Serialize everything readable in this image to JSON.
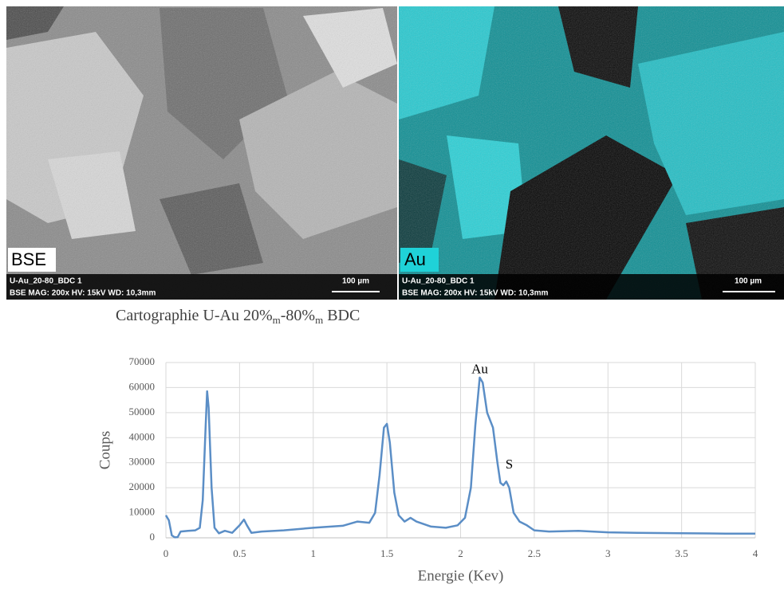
{
  "images": [
    {
      "label": "BSE",
      "sample": "U-Au_20-80_BDC 1",
      "settings": "BSE  MAG: 200x  HV: 15kV  WD: 10,3mm",
      "scale": "100 µm"
    },
    {
      "label": "Au",
      "sample": "U-Au_20-80_BDC 1",
      "settings": "BSE  MAG: 200x  HV: 15kV  WD: 10,3mm",
      "scale": "100 µm"
    }
  ],
  "caption": {
    "parts": [
      "Cartographie  U-Au 20%",
      "m",
      "-80%",
      "m",
      " BDC"
    ]
  },
  "chart_data": {
    "type": "line",
    "x_label": "Energie (Kev)",
    "y_label": "Coups",
    "x": [
      0,
      0.02,
      0.04,
      0.06,
      0.08,
      0.1,
      0.15,
      0.2,
      0.23,
      0.25,
      0.27,
      0.28,
      0.29,
      0.31,
      0.33,
      0.36,
      0.4,
      0.45,
      0.5,
      0.53,
      0.55,
      0.58,
      0.65,
      0.8,
      1.0,
      1.2,
      1.3,
      1.38,
      1.42,
      1.45,
      1.48,
      1.5,
      1.52,
      1.55,
      1.58,
      1.62,
      1.66,
      1.7,
      1.8,
      1.9,
      1.98,
      2.03,
      2.07,
      2.1,
      2.13,
      2.15,
      2.18,
      2.22,
      2.25,
      2.27,
      2.29,
      2.31,
      2.33,
      2.36,
      2.4,
      2.45,
      2.5,
      2.6,
      2.8,
      3.0,
      3.2,
      3.5,
      3.8,
      4.0
    ],
    "values": [
      9000,
      7000,
      1000,
      200,
      300,
      2500,
      2800,
      3000,
      4000,
      15000,
      45000,
      58500,
      52000,
      20000,
      4000,
      1800,
      2800,
      2000,
      5000,
      7300,
      5000,
      2000,
      2500,
      3000,
      4000,
      4800,
      6500,
      6000,
      10000,
      25000,
      44000,
      45500,
      38000,
      18000,
      9000,
      6500,
      8000,
      6500,
      4500,
      4000,
      5000,
      8000,
      20000,
      45000,
      64000,
      62000,
      50000,
      44000,
      30000,
      22000,
      21000,
      22500,
      20000,
      10000,
      6500,
      5000,
      3000,
      2500,
      2800,
      2200,
      2000,
      1800,
      1700,
      1700
    ],
    "color": "#5b8ec6",
    "xlim": [
      0,
      4
    ],
    "xticks": [
      0,
      0.5,
      1,
      1.5,
      2,
      2.5,
      3,
      3.5,
      4
    ],
    "ylim": [
      0,
      70000
    ],
    "yticks": [
      0,
      10000,
      20000,
      30000,
      40000,
      50000,
      60000,
      70000
    ],
    "grid": true,
    "annotations": [
      {
        "text": "Au",
        "x": 2.13,
        "y": 67000
      },
      {
        "text": "S",
        "x": 2.33,
        "y": 29000
      }
    ]
  }
}
